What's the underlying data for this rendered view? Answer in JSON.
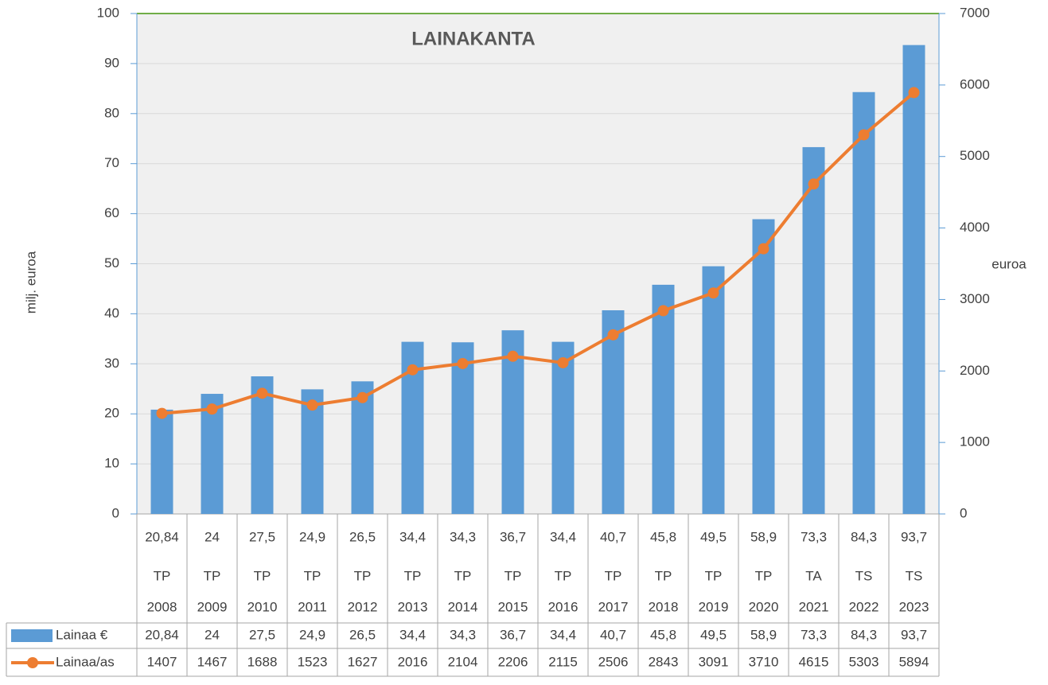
{
  "chart_data": {
    "type": "bar-line",
    "title": "LAINAKANTA",
    "y_label": "milj. euroa",
    "y2_label": "euroa",
    "categories": [
      [
        "TP",
        "2008"
      ],
      [
        "TP",
        "2009"
      ],
      [
        "TP",
        "2010"
      ],
      [
        "TP",
        "2011"
      ],
      [
        "TP",
        "2012"
      ],
      [
        "TP",
        "2013"
      ],
      [
        "TP",
        "2014"
      ],
      [
        "TP",
        "2015"
      ],
      [
        "TP",
        "2016"
      ],
      [
        "TP",
        "2017"
      ],
      [
        "TP",
        "2018"
      ],
      [
        "TP",
        "2019"
      ],
      [
        "TP",
        "2020"
      ],
      [
        "TA",
        "2021"
      ],
      [
        "TS",
        "2022"
      ],
      [
        "TS",
        "2023"
      ]
    ],
    "series": [
      {
        "name": "Lainaa €",
        "type": "bar",
        "color": "#5b9bd5",
        "values": [
          20.84,
          24,
          27.5,
          24.9,
          26.5,
          34.4,
          34.3,
          36.7,
          34.4,
          40.7,
          45.8,
          49.5,
          58.9,
          73.3,
          84.3,
          93.7
        ],
        "value_labels": [
          "20,84",
          "24",
          "27,5",
          "24,9",
          "26,5",
          "34,4",
          "34,3",
          "36,7",
          "34,4",
          "40,7",
          "45,8",
          "49,5",
          "58,9",
          "73,3",
          "84,3",
          "93,7"
        ]
      },
      {
        "name": "Lainaa/as",
        "type": "line",
        "axis": "y2",
        "color": "#ed7d31",
        "values": [
          1407,
          1467,
          1688,
          1523,
          1627,
          2016,
          2104,
          2206,
          2115,
          2506,
          2843,
          3091,
          3710,
          4615,
          5303,
          5894
        ]
      }
    ],
    "ylim": [
      0,
      100
    ],
    "yticks": [
      0,
      10,
      20,
      30,
      40,
      50,
      60,
      70,
      80,
      90,
      100
    ],
    "y2lim": [
      0,
      7000
    ],
    "y2ticks": [
      0,
      1000,
      2000,
      3000,
      4000,
      5000,
      6000,
      7000
    ],
    "grid": true
  }
}
